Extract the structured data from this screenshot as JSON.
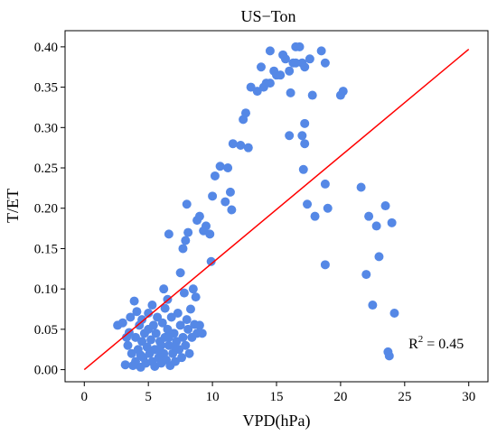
{
  "chart_data": {
    "type": "scatter",
    "title": "US−Ton",
    "xlabel": "VPD(hPa)",
    "ylabel": "T/ET",
    "xlim": [
      -1.5,
      31.5
    ],
    "ylim": [
      -0.015,
      0.42
    ],
    "xticks": [
      0,
      5,
      10,
      15,
      20,
      25,
      30
    ],
    "xtick_labels": [
      "0",
      "5",
      "10",
      "15",
      "20",
      "25",
      "30"
    ],
    "yticks": [
      0.0,
      0.05,
      0.1,
      0.15,
      0.2,
      0.25,
      0.3,
      0.35,
      0.4
    ],
    "ytick_labels": [
      "0.00",
      "0.05",
      "0.10",
      "0.15",
      "0.20",
      "0.25",
      "0.30",
      "0.35",
      "0.40"
    ],
    "grid": false,
    "point_color": "#5588e6",
    "line_color": "#ff0000",
    "fit_line": {
      "x": [
        0,
        30
      ],
      "y": [
        0.0,
        0.397
      ]
    },
    "annotation": {
      "text": "R",
      "sup": "2",
      "rest": " = 0.45",
      "x": 25.3,
      "y": 0.032
    },
    "points": [
      [
        2.6,
        0.055
      ],
      [
        3.0,
        0.058
      ],
      [
        3.2,
        0.006
      ],
      [
        3.4,
        0.03
      ],
      [
        3.5,
        0.046
      ],
      [
        3.6,
        0.065
      ],
      [
        3.7,
        0.02
      ],
      [
        3.8,
        0.005
      ],
      [
        3.9,
        0.085
      ],
      [
        4.0,
        0.04
      ],
      [
        4.0,
        0.01
      ],
      [
        4.1,
        0.072
      ],
      [
        4.2,
        0.025
      ],
      [
        4.3,
        0.055
      ],
      [
        4.4,
        0.003
      ],
      [
        4.5,
        0.035
      ],
      [
        4.5,
        0.062
      ],
      [
        4.6,
        0.015
      ],
      [
        4.7,
        0.045
      ],
      [
        4.8,
        0.008
      ],
      [
        4.9,
        0.028
      ],
      [
        5.0,
        0.07
      ],
      [
        5.0,
        0.05
      ],
      [
        5.1,
        0.02
      ],
      [
        5.2,
        0.037
      ],
      [
        5.3,
        0.01
      ],
      [
        5.3,
        0.08
      ],
      [
        5.4,
        0.055
      ],
      [
        5.5,
        0.025
      ],
      [
        5.5,
        0.004
      ],
      [
        5.6,
        0.045
      ],
      [
        5.7,
        0.065
      ],
      [
        5.8,
        0.015
      ],
      [
        5.9,
        0.035
      ],
      [
        6.0,
        0.03
      ],
      [
        6.0,
        0.008
      ],
      [
        6.1,
        0.058
      ],
      [
        6.2,
        0.02
      ],
      [
        6.3,
        0.04
      ],
      [
        6.3,
        0.076
      ],
      [
        6.4,
        0.012
      ],
      [
        6.5,
        0.05
      ],
      [
        6.5,
        0.087
      ],
      [
        6.6,
        0.03
      ],
      [
        6.7,
        0.005
      ],
      [
        6.8,
        0.065
      ],
      [
        6.9,
        0.02
      ],
      [
        7.0,
        0.045
      ],
      [
        7.1,
        0.01
      ],
      [
        7.2,
        0.035
      ],
      [
        7.3,
        0.07
      ],
      [
        7.4,
        0.025
      ],
      [
        7.5,
        0.055
      ],
      [
        7.6,
        0.015
      ],
      [
        7.7,
        0.04
      ],
      [
        7.8,
        0.095
      ],
      [
        7.9,
        0.03
      ],
      [
        8.0,
        0.062
      ],
      [
        8.1,
        0.05
      ],
      [
        8.2,
        0.02
      ],
      [
        8.3,
        0.075
      ],
      [
        8.4,
        0.04
      ],
      [
        8.5,
        0.1
      ],
      [
        8.6,
        0.056
      ],
      [
        8.7,
        0.09
      ],
      [
        8.8,
        0.045
      ],
      [
        9.0,
        0.055
      ],
      [
        3.3,
        0.04
      ],
      [
        4.4,
        0.018
      ],
      [
        5.8,
        0.025
      ],
      [
        6.6,
        0.04
      ],
      [
        7.1,
        0.028
      ],
      [
        6.2,
        0.1
      ],
      [
        6.6,
        0.168
      ],
      [
        7.5,
        0.12
      ],
      [
        7.7,
        0.15
      ],
      [
        7.9,
        0.16
      ],
      [
        8.0,
        0.205
      ],
      [
        8.1,
        0.17
      ],
      [
        8.8,
        0.185
      ],
      [
        9.0,
        0.19
      ],
      [
        9.3,
        0.172
      ],
      [
        9.5,
        0.178
      ],
      [
        9.8,
        0.168
      ],
      [
        9.9,
        0.134
      ],
      [
        10.0,
        0.215
      ],
      [
        10.2,
        0.24
      ],
      [
        10.6,
        0.252
      ],
      [
        11.0,
        0.208
      ],
      [
        11.2,
        0.25
      ],
      [
        11.4,
        0.22
      ],
      [
        11.5,
        0.198
      ],
      [
        11.6,
        0.28
      ],
      [
        12.2,
        0.278
      ],
      [
        12.4,
        0.31
      ],
      [
        12.6,
        0.318
      ],
      [
        12.8,
        0.275
      ],
      [
        13.0,
        0.35
      ],
      [
        13.5,
        0.345
      ],
      [
        13.8,
        0.375
      ],
      [
        14.0,
        0.35
      ],
      [
        14.2,
        0.355
      ],
      [
        14.5,
        0.395
      ],
      [
        14.8,
        0.37
      ],
      [
        15.0,
        0.365
      ],
      [
        15.3,
        0.365
      ],
      [
        15.7,
        0.385
      ],
      [
        16.0,
        0.37
      ],
      [
        16.3,
        0.38
      ],
      [
        16.5,
        0.38
      ],
      [
        16.8,
        0.4
      ],
      [
        17.0,
        0.38
      ],
      [
        17.2,
        0.375
      ],
      [
        15.5,
        0.39
      ],
      [
        16.1,
        0.343
      ],
      [
        16.0,
        0.29
      ],
      [
        17.0,
        0.29
      ],
      [
        17.2,
        0.305
      ],
      [
        17.2,
        0.28
      ],
      [
        17.6,
        0.385
      ],
      [
        17.8,
        0.34
      ],
      [
        18.5,
        0.395
      ],
      [
        18.8,
        0.38
      ],
      [
        20.0,
        0.34
      ],
      [
        20.2,
        0.345
      ],
      [
        17.1,
        0.248
      ],
      [
        17.4,
        0.205
      ],
      [
        18.0,
        0.19
      ],
      [
        18.8,
        0.23
      ],
      [
        19.0,
        0.2
      ],
      [
        18.8,
        0.13
      ],
      [
        21.6,
        0.226
      ],
      [
        22.0,
        0.118
      ],
      [
        22.2,
        0.19
      ],
      [
        22.5,
        0.08
      ],
      [
        22.8,
        0.178
      ],
      [
        23.0,
        0.14
      ],
      [
        23.5,
        0.203
      ],
      [
        24.0,
        0.182
      ],
      [
        23.7,
        0.022
      ],
      [
        23.8,
        0.017
      ],
      [
        24.2,
        0.07
      ],
      [
        16.5,
        0.4
      ],
      [
        14.5,
        0.355
      ],
      [
        9.2,
        0.045
      ]
    ]
  }
}
